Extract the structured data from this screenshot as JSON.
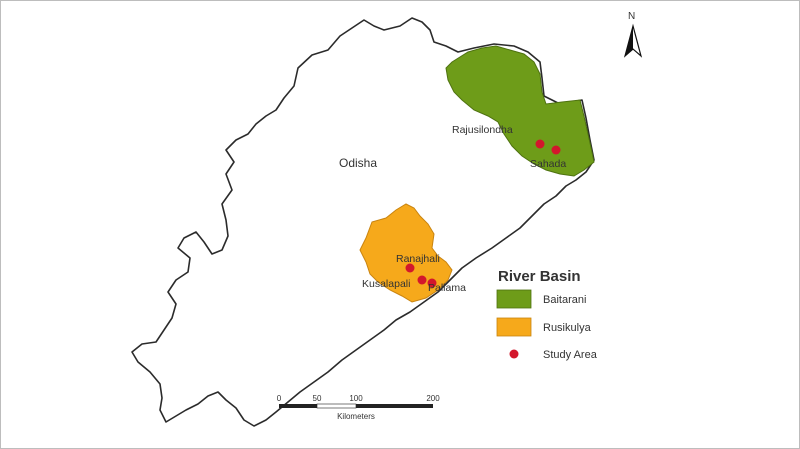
{
  "map": {
    "region_label": "Odisha",
    "north_label": "N",
    "places": [
      {
        "name": "Rajusilondha"
      },
      {
        "name": "Sahada"
      },
      {
        "name": "Ranajhali"
      },
      {
        "name": "Kusalapali"
      },
      {
        "name": "Pallama"
      }
    ],
    "colors": {
      "baitarani": "#6e9c19",
      "rusikulya": "#f6a91b",
      "study_point": "#d3172c",
      "outline": "#2b2b2b"
    }
  },
  "legend": {
    "title": "River Basin",
    "items": [
      {
        "label": "Baitarani",
        "color": "#6e9c19"
      },
      {
        "label": "Rusikulya",
        "color": "#f6a91b"
      },
      {
        "label": "Study Area",
        "color": "#d3172c"
      }
    ]
  },
  "scale_bar": {
    "ticks": [
      "0",
      "50",
      "100",
      "200"
    ],
    "unit": "Kilometers"
  }
}
